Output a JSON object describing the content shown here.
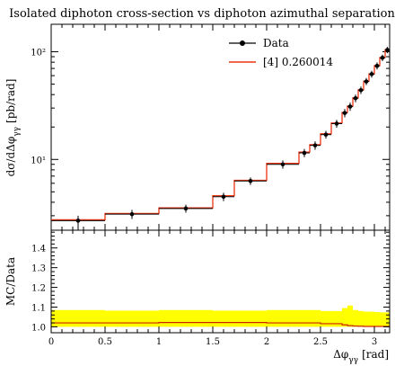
{
  "figure": {
    "title": "Isolated diphoton cross-section vs diphoton azimuthal separation",
    "main_ylabel": "dσ/dΔφ",
    "main_ylabel_sub": "γγ",
    "main_ylabel_unit": "[pb/rad]",
    "ratio_ylabel": "MC/Data",
    "xlabel": "Δφ",
    "xlabel_sub": "γγ",
    "xlabel_unit": "[rad]"
  },
  "chart_data": {
    "type": "line",
    "title": "Isolated diphoton cross-section vs diphoton azimuthal separation",
    "x_ticks": [
      "0",
      "0.5",
      "1",
      "1.5",
      "2",
      "2.5",
      "3"
    ],
    "xlim": [
      0,
      3.1416
    ],
    "main": {
      "yscale": "log",
      "ylim": [
        2.2,
        180
      ],
      "y_ticks": [
        {
          "value": 10,
          "label": "10¹"
        },
        {
          "value": 100,
          "label": "10²"
        }
      ],
      "legend": [
        "Data",
        "[4] 0.260014"
      ],
      "legend_position": "top-right",
      "bins": [
        [
          0.0,
          0.5
        ],
        [
          0.5,
          1.0
        ],
        [
          1.0,
          1.5
        ],
        [
          1.5,
          1.7
        ],
        [
          1.7,
          2.0
        ],
        [
          2.0,
          2.3
        ],
        [
          2.3,
          2.4
        ],
        [
          2.4,
          2.5
        ],
        [
          2.5,
          2.6
        ],
        [
          2.6,
          2.7
        ],
        [
          2.7,
          2.75
        ],
        [
          2.75,
          2.8
        ],
        [
          2.8,
          2.85
        ],
        [
          2.85,
          2.9
        ],
        [
          2.9,
          2.95
        ],
        [
          2.95,
          3.0
        ],
        [
          3.0,
          3.05
        ],
        [
          3.05,
          3.1
        ],
        [
          3.1,
          3.1416
        ]
      ],
      "series": [
        {
          "name": "Data",
          "color": "#000000",
          "x": [
            0.25,
            0.75,
            1.25,
            1.6,
            1.85,
            2.15,
            2.35,
            2.45,
            2.55,
            2.65,
            2.725,
            2.775,
            2.825,
            2.875,
            2.925,
            2.975,
            3.025,
            3.075,
            3.12
          ],
          "values": [
            2.7,
            3.1,
            3.5,
            4.5,
            6.3,
            9.0,
            11.5,
            13.5,
            17.0,
            21.5,
            27.0,
            31.0,
            37.0,
            44.0,
            53.0,
            62.0,
            74.0,
            88.0,
            104.0
          ],
          "err_low": [
            0.5,
            0.3,
            0.3,
            0.4,
            0.5,
            0.8,
            1.0,
            1.2,
            1.4,
            1.8,
            2.4,
            2.7,
            3.0,
            3.5,
            4.0,
            4.5,
            5.5,
            6.0,
            7.0
          ],
          "err_high": [
            0.3,
            0.3,
            0.3,
            0.4,
            0.5,
            0.8,
            1.0,
            1.2,
            1.4,
            1.8,
            2.4,
            2.7,
            3.0,
            3.5,
            4.0,
            4.5,
            5.5,
            6.0,
            7.0
          ]
        },
        {
          "name": "[4] 0.260014",
          "color": "#ee3311",
          "values": [
            2.75,
            3.15,
            3.55,
            4.6,
            6.4,
            9.2,
            11.7,
            13.7,
            17.3,
            21.8,
            27.3,
            31.3,
            37.3,
            44.3,
            53.3,
            62.3,
            74.3,
            88.3,
            104.5
          ]
        }
      ]
    },
    "ratio": {
      "ylim": [
        0.97,
        1.49
      ],
      "y_ticks": [
        1.0,
        1.1,
        1.2,
        1.3,
        1.4
      ],
      "band_color": "#ffff00",
      "line_color": "#cc2200",
      "band_bins": [
        [
          0.0,
          0.5
        ],
        [
          0.5,
          1.0
        ],
        [
          1.0,
          1.5
        ],
        [
          1.5,
          2.0
        ],
        [
          2.0,
          2.5
        ],
        [
          2.5,
          2.7
        ],
        [
          2.7,
          2.75
        ],
        [
          2.75,
          2.8
        ],
        [
          2.8,
          2.85
        ],
        [
          2.85,
          2.9
        ],
        [
          2.9,
          3.0
        ],
        [
          3.0,
          3.05
        ],
        [
          3.05,
          3.1416
        ]
      ],
      "band_high": [
        1.085,
        1.082,
        1.085,
        1.082,
        1.085,
        1.08,
        1.095,
        1.108,
        1.085,
        1.08,
        1.077,
        1.075,
        1.073
      ],
      "band_low": [
        1.0,
        1.0,
        1.0,
        1.0,
        1.0,
        1.0,
        1.0,
        1.0,
        1.0,
        1.0,
        1.0,
        1.0,
        1.0
      ],
      "mc_ratio": [
        1.02,
        1.02,
        1.022,
        1.022,
        1.02,
        1.016,
        1.01,
        1.006,
        1.004,
        1.003,
        1.002,
        1.002,
        1.002
      ]
    }
  }
}
